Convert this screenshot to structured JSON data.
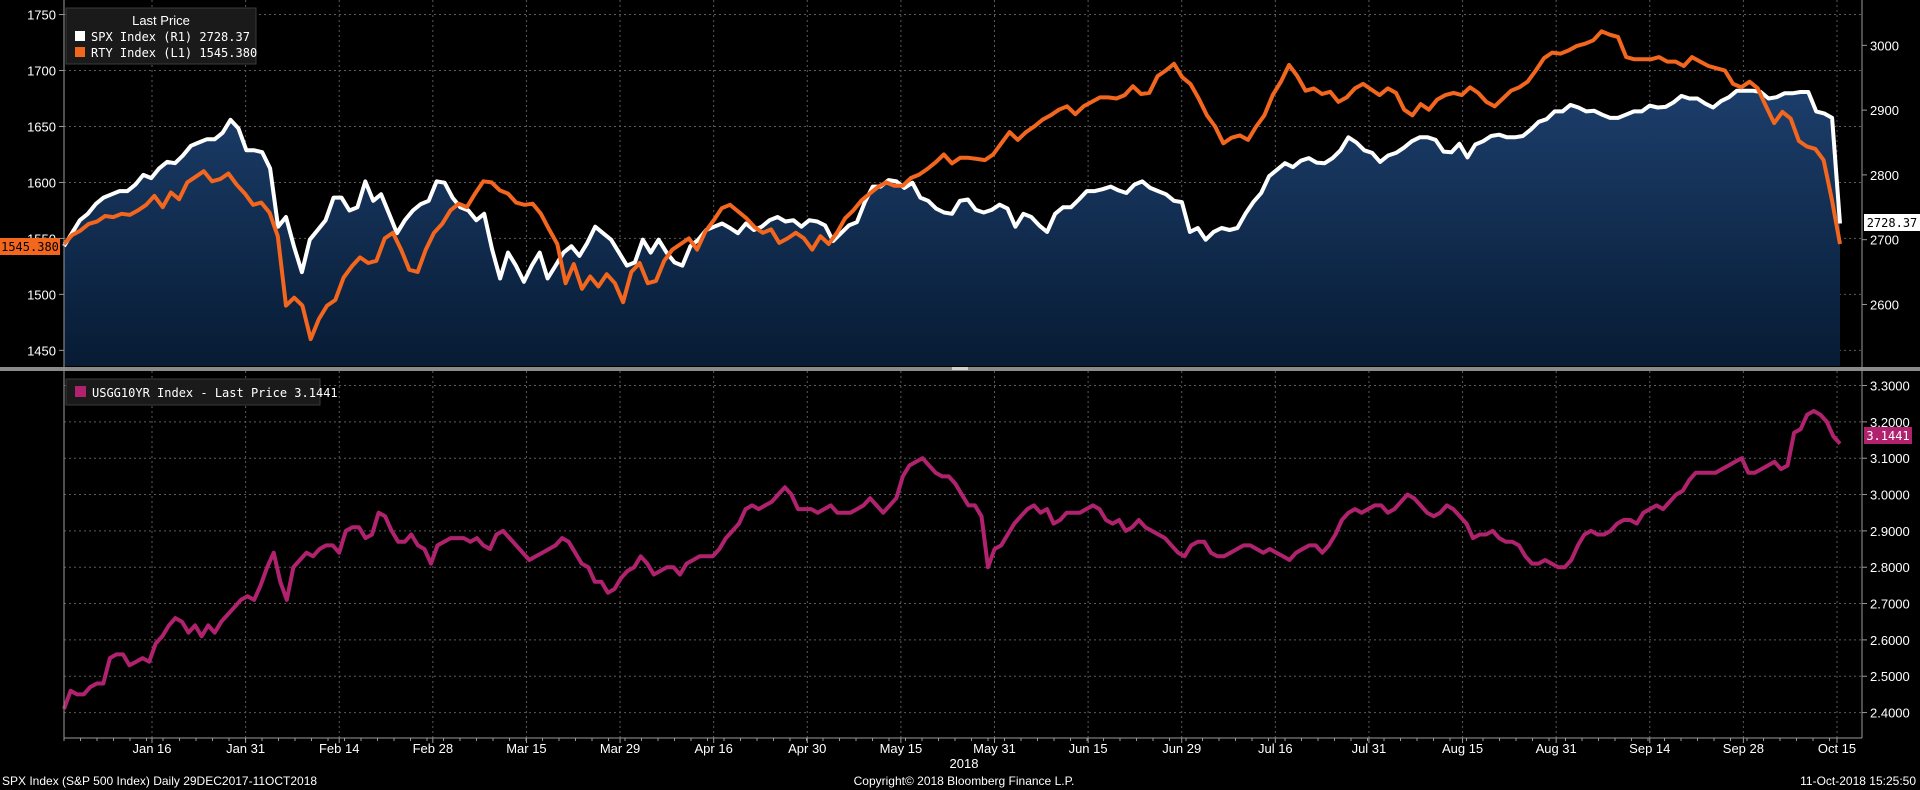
{
  "footer": {
    "left": "SPX Index (S&P 500 Index)  Daily 29DEC2017-11OCT2018",
    "center": "Copyright© 2018 Bloomberg Finance L.P.",
    "right": "11-Oct-2018 15:25:50"
  },
  "x_axis": {
    "ticks": [
      "Jan 16",
      "Jan 31",
      "Feb 14",
      "Feb 28",
      "Mar 15",
      "Mar 29",
      "Apr 16",
      "Apr 30",
      "May 15",
      "May 31",
      "Jun 15",
      "Jun 29",
      "Jul 16",
      "Jul 31",
      "Aug 15",
      "Aug 31",
      "Sep 14",
      "Sep 28",
      "Oct 15"
    ],
    "year_label": "2018"
  },
  "colors": {
    "spx": "#ffffff",
    "rty": "#f2661e",
    "usgg": "#b0226e",
    "area_top": "#1c3e6b",
    "area_bottom": "#071b34",
    "grid": "#5a5a5a"
  },
  "chart_data": [
    {
      "type": "line",
      "legend_title": "Last Price",
      "legend_placement": "top-left",
      "grid": true,
      "series": [
        {
          "name": "SPX Index  (R1) 2728.37",
          "axis": "right",
          "last_label": "2728.37",
          "values": [
            2690,
            2710,
            2730,
            2740,
            2755,
            2765,
            2770,
            2775,
            2775,
            2785,
            2800,
            2795,
            2810,
            2820,
            2818,
            2830,
            2845,
            2850,
            2855,
            2855,
            2865,
            2885,
            2872,
            2838,
            2838,
            2835,
            2810,
            2720,
            2735,
            2690,
            2650,
            2700,
            2715,
            2730,
            2765,
            2765,
            2745,
            2750,
            2790,
            2760,
            2770,
            2740,
            2710,
            2730,
            2745,
            2755,
            2760,
            2790,
            2788,
            2765,
            2750,
            2745,
            2730,
            2740,
            2685,
            2640,
            2680,
            2660,
            2635,
            2660,
            2680,
            2640,
            2660,
            2680,
            2690,
            2675,
            2695,
            2720,
            2710,
            2700,
            2680,
            2660,
            2665,
            2700,
            2680,
            2700,
            2680,
            2665,
            2660,
            2690,
            2700,
            2715,
            2720,
            2725,
            2718,
            2710,
            2725,
            2715,
            2720,
            2730,
            2735,
            2728,
            2730,
            2720,
            2730,
            2728,
            2722,
            2698,
            2710,
            2722,
            2727,
            2758,
            2782,
            2782,
            2792,
            2790,
            2780,
            2788,
            2765,
            2760,
            2748,
            2742,
            2740,
            2760,
            2762,
            2746,
            2742,
            2746,
            2754,
            2748,
            2720,
            2740,
            2735,
            2722,
            2712,
            2740,
            2750,
            2750,
            2762,
            2775,
            2775,
            2778,
            2782,
            2776,
            2772,
            2785,
            2790,
            2780,
            2775,
            2770,
            2760,
            2758,
            2712,
            2718,
            2700,
            2712,
            2718,
            2715,
            2718,
            2740,
            2758,
            2772,
            2798,
            2808,
            2818,
            2812,
            2822,
            2826,
            2819,
            2818,
            2826,
            2838,
            2858,
            2850,
            2838,
            2834,
            2820,
            2830,
            2834,
            2842,
            2852,
            2858,
            2858,
            2854,
            2836,
            2835,
            2848,
            2827,
            2847,
            2852,
            2860,
            2862,
            2858,
            2858,
            2860,
            2870,
            2882,
            2886,
            2898,
            2898,
            2908,
            2904,
            2898,
            2899,
            2893,
            2888,
            2888,
            2893,
            2898,
            2898,
            2907,
            2904,
            2905,
            2912,
            2922,
            2918,
            2918,
            2910,
            2904,
            2914,
            2920,
            2930,
            2930,
            2930,
            2928,
            2918,
            2920,
            2926,
            2926,
            2928,
            2928,
            2898,
            2895,
            2888,
            2725
          ]
        },
        {
          "name": "RTY Index  (L1) 1545.380",
          "axis": "left",
          "last_label": "1545.380",
          "values": [
            1545,
            1553,
            1557,
            1563,
            1565,
            1570,
            1569,
            1572,
            1571,
            1575,
            1580,
            1588,
            1578,
            1591,
            1585,
            1600,
            1605,
            1610,
            1601,
            1603,
            1608,
            1598,
            1590,
            1580,
            1582,
            1573,
            1552,
            1490,
            1497,
            1490,
            1460,
            1478,
            1490,
            1495,
            1515,
            1525,
            1533,
            1528,
            1530,
            1550,
            1555,
            1540,
            1522,
            1520,
            1540,
            1555,
            1563,
            1575,
            1581,
            1578,
            1590,
            1601,
            1600,
            1593,
            1590,
            1582,
            1580,
            1581,
            1572,
            1558,
            1545,
            1510,
            1527,
            1505,
            1516,
            1507,
            1518,
            1510,
            1493,
            1520,
            1528,
            1510,
            1512,
            1530,
            1540,
            1545,
            1550,
            1540,
            1556,
            1566,
            1577,
            1580,
            1574,
            1568,
            1560,
            1555,
            1558,
            1546,
            1550,
            1555,
            1550,
            1540,
            1552,
            1545,
            1555,
            1568,
            1575,
            1584,
            1590,
            1596,
            1600,
            1597,
            1597,
            1604,
            1607,
            1612,
            1618,
            1625,
            1617,
            1622,
            1622,
            1621,
            1620,
            1625,
            1635,
            1645,
            1638,
            1645,
            1650,
            1656,
            1660,
            1665,
            1668,
            1661,
            1668,
            1672,
            1676,
            1676,
            1675,
            1678,
            1686,
            1679,
            1680,
            1695,
            1700,
            1706,
            1694,
            1688,
            1675,
            1660,
            1650,
            1635,
            1640,
            1642,
            1638,
            1650,
            1660,
            1678,
            1690,
            1705,
            1695,
            1682,
            1684,
            1679,
            1681,
            1672,
            1676,
            1684,
            1688,
            1683,
            1678,
            1684,
            1680,
            1665,
            1660,
            1670,
            1665,
            1674,
            1678,
            1680,
            1678,
            1685,
            1680,
            1672,
            1668,
            1675,
            1682,
            1685,
            1690,
            1700,
            1711,
            1716,
            1715,
            1718,
            1722,
            1724,
            1727,
            1735,
            1732,
            1730,
            1712,
            1710,
            1710,
            1710,
            1712,
            1708,
            1708,
            1704,
            1712,
            1708,
            1704,
            1702,
            1700,
            1688,
            1685,
            1690,
            1684,
            1668,
            1653,
            1663,
            1657,
            1637,
            1632,
            1630,
            1620,
            1585,
            1545
          ]
        }
      ],
      "y_left": {
        "ticks": [
          1450,
          1500,
          1550,
          1600,
          1650,
          1700,
          1750
        ],
        "ylim": [
          1436,
          1763
        ]
      },
      "y_right": {
        "ticks": [
          2600,
          2700,
          2800,
          2900,
          3000
        ],
        "ylim": [
          2505,
          3070
        ]
      }
    },
    {
      "type": "line",
      "legend_placement": "top-left",
      "grid": true,
      "series": [
        {
          "name": "USGG10YR Index - Last Price 3.1441",
          "axis": "right",
          "last_label": "3.1441",
          "values": [
            2.41,
            2.46,
            2.45,
            2.45,
            2.47,
            2.48,
            2.48,
            2.55,
            2.56,
            2.56,
            2.53,
            2.54,
            2.55,
            2.54,
            2.59,
            2.61,
            2.64,
            2.66,
            2.65,
            2.62,
            2.64,
            2.61,
            2.64,
            2.62,
            2.65,
            2.67,
            2.69,
            2.71,
            2.72,
            2.71,
            2.75,
            2.8,
            2.84,
            2.76,
            2.71,
            2.8,
            2.82,
            2.84,
            2.83,
            2.85,
            2.86,
            2.86,
            2.84,
            2.9,
            2.91,
            2.91,
            2.88,
            2.89,
            2.95,
            2.94,
            2.9,
            2.87,
            2.87,
            2.89,
            2.86,
            2.85,
            2.81,
            2.86,
            2.87,
            2.88,
            2.88,
            2.88,
            2.87,
            2.88,
            2.86,
            2.85,
            2.89,
            2.9,
            2.88,
            2.86,
            2.84,
            2.82,
            2.83,
            2.84,
            2.85,
            2.86,
            2.88,
            2.87,
            2.84,
            2.81,
            2.8,
            2.76,
            2.76,
            2.73,
            2.74,
            2.77,
            2.79,
            2.8,
            2.83,
            2.81,
            2.78,
            2.79,
            2.8,
            2.8,
            2.78,
            2.81,
            2.82,
            2.83,
            2.83,
            2.83,
            2.85,
            2.88,
            2.9,
            2.92,
            2.96,
            2.97,
            2.96,
            2.97,
            2.98,
            3.0,
            3.02,
            3.0,
            2.96,
            2.96,
            2.96,
            2.95,
            2.96,
            2.97,
            2.95,
            2.95,
            2.95,
            2.96,
            2.97,
            2.99,
            2.97,
            2.95,
            2.97,
            2.99,
            3.05,
            3.08,
            3.09,
            3.1,
            3.08,
            3.06,
            3.05,
            3.05,
            3.03,
            3.0,
            2.97,
            2.97,
            2.94,
            2.8,
            2.85,
            2.86,
            2.89,
            2.92,
            2.94,
            2.96,
            2.97,
            2.95,
            2.96,
            2.92,
            2.93,
            2.95,
            2.95,
            2.95,
            2.96,
            2.97,
            2.96,
            2.93,
            2.92,
            2.93,
            2.9,
            2.91,
            2.93,
            2.91,
            2.9,
            2.89,
            2.88,
            2.86,
            2.84,
            2.83,
            2.86,
            2.87,
            2.87,
            2.84,
            2.83,
            2.83,
            2.84,
            2.85,
            2.86,
            2.86,
            2.85,
            2.84,
            2.85,
            2.84,
            2.83,
            2.82,
            2.84,
            2.85,
            2.86,
            2.86,
            2.84,
            2.86,
            2.89,
            2.93,
            2.95,
            2.96,
            2.95,
            2.96,
            2.97,
            2.97,
            2.95,
            2.96,
            2.98,
            3.0,
            2.99,
            2.97,
            2.95,
            2.94,
            2.95,
            2.97,
            2.96,
            2.94,
            2.92,
            2.88,
            2.89,
            2.89,
            2.9,
            2.88,
            2.87,
            2.87,
            2.86,
            2.83,
            2.81,
            2.81,
            2.82,
            2.81,
            2.8,
            2.8,
            2.82,
            2.86,
            2.89,
            2.9,
            2.89,
            2.89,
            2.9,
            2.92,
            2.93,
            2.93,
            2.92,
            2.95,
            2.96,
            2.97,
            2.96,
            2.98,
            3.0,
            3.01,
            3.04,
            3.06,
            3.06,
            3.06,
            3.06,
            3.07,
            3.08,
            3.09,
            3.1,
            3.06,
            3.06,
            3.07,
            3.08,
            3.09,
            3.07,
            3.08,
            3.17,
            3.18,
            3.22,
            3.23,
            3.22,
            3.2,
            3.16,
            3.14
          ]
        }
      ],
      "y_right": {
        "ticks": [
          2.4,
          2.5,
          2.6,
          2.7,
          2.8,
          2.9,
          3.0,
          3.1,
          3.2,
          3.3
        ],
        "tick_labels": [
          "2.4000",
          "2.5000",
          "2.6000",
          "2.7000",
          "2.8000",
          "2.9000",
          "3.0000",
          "3.1000",
          "3.2000",
          "3.3000"
        ],
        "ylim": [
          2.33,
          3.34
        ]
      }
    }
  ]
}
